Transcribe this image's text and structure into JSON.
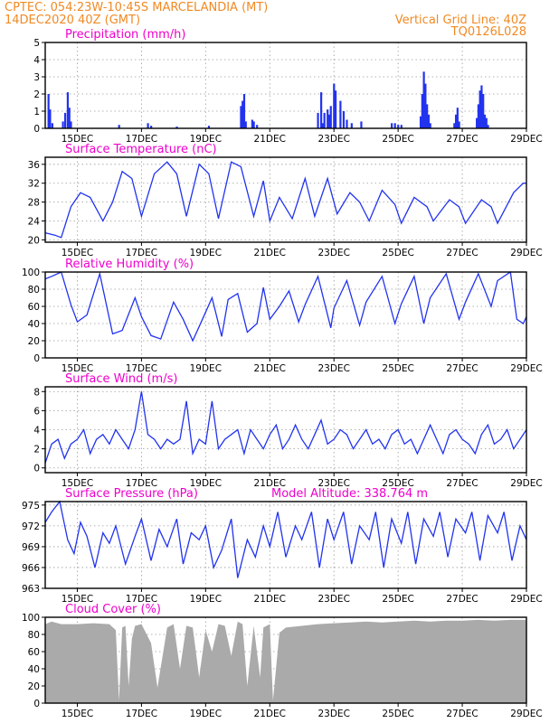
{
  "header": {
    "line1_left": "CPTEC:   054:23W-10:45S   MARCELANDIA (MT)",
    "line2_left": "14DEC2020 40Z (GMT)",
    "line1_right": "Vertical Grid Line: 40Z",
    "line2_right": "TQ0126L028"
  },
  "x_tick_labels": [
    "15DEC",
    "17DEC",
    "19DEC",
    "21DEC",
    "23DEC",
    "25DEC",
    "27DEC",
    "29DEC"
  ],
  "colors": {
    "header": "#f08a24",
    "title": "#ee00cc",
    "series": "#2233ee",
    "cloud": "#aaaaaa"
  },
  "chart_data": [
    {
      "type": "bar",
      "title": "Precipitation (mm/h)",
      "x_days": [
        14.1,
        14.15,
        14.22,
        14.55,
        14.62,
        14.7,
        14.75,
        14.8,
        16.3,
        17.2,
        17.3,
        18.1,
        19.1,
        20.1,
        20.15,
        20.2,
        20.25,
        20.45,
        20.5,
        20.6,
        22.5,
        22.6,
        22.65,
        22.7,
        22.8,
        22.85,
        22.9,
        23.0,
        23.05,
        23.2,
        23.3,
        23.4,
        23.55,
        23.85,
        24.8,
        24.9,
        25.0,
        25.1,
        25.7,
        25.75,
        25.8,
        25.85,
        25.9,
        25.95,
        26.0,
        26.75,
        26.8,
        26.85,
        26.9,
        27.45,
        27.5,
        27.55,
        27.6,
        27.65,
        27.7,
        27.75,
        27.8
      ],
      "values": [
        2.0,
        1.1,
        0.3,
        0.4,
        0.9,
        2.1,
        1.2,
        0.4,
        0.2,
        0.3,
        0.15,
        0.1,
        0.15,
        1.3,
        1.6,
        2.0,
        0.4,
        0.5,
        0.4,
        0.2,
        0.9,
        2.1,
        0.3,
        0.9,
        1.1,
        0.8,
        1.3,
        2.6,
        2.2,
        1.6,
        1.0,
        0.5,
        0.3,
        0.4,
        0.3,
        0.3,
        0.2,
        0.2,
        0.7,
        2.0,
        3.3,
        2.6,
        1.4,
        0.8,
        0.3,
        0.3,
        0.8,
        1.2,
        0.4,
        0.6,
        1.4,
        2.2,
        2.5,
        2.0,
        0.8,
        0.6,
        0.2
      ],
      "xlabel": "",
      "ylabel": "",
      "ylim": [
        0,
        5
      ],
      "yticks": [
        0,
        1,
        2,
        3,
        4,
        5
      ],
      "grid": true
    },
    {
      "type": "line",
      "title": "Surface Temperature (nC)",
      "x_days": [
        14.0,
        14.3,
        14.5,
        14.8,
        15.1,
        15.4,
        15.8,
        16.1,
        16.4,
        16.7,
        17.0,
        17.4,
        17.8,
        18.1,
        18.4,
        18.8,
        19.1,
        19.4,
        19.8,
        20.1,
        20.5,
        20.8,
        21.0,
        21.3,
        21.7,
        22.1,
        22.4,
        22.8,
        23.1,
        23.5,
        23.8,
        24.1,
        24.5,
        24.9,
        25.1,
        25.5,
        25.9,
        26.1,
        26.6,
        26.9,
        27.1,
        27.6,
        27.9,
        28.1,
        28.6,
        28.9,
        29.0
      ],
      "values": [
        21.5,
        21,
        20.5,
        27,
        30,
        29,
        24,
        28,
        34.5,
        33,
        25,
        34,
        36.5,
        34,
        25,
        36,
        34,
        24.5,
        36.5,
        35.5,
        25,
        32.5,
        24,
        29,
        24.5,
        33,
        25,
        33,
        25.5,
        30,
        28,
        24,
        30.5,
        27.5,
        23.5,
        29,
        27,
        24,
        28.5,
        27,
        23.5,
        28.5,
        27,
        23.5,
        30,
        32,
        32
      ],
      "xlabel": "",
      "ylabel": "",
      "ylim": [
        19.5,
        37.5
      ],
      "yticks": [
        20,
        24,
        28,
        32,
        36
      ],
      "grid": true
    },
    {
      "type": "line",
      "title": "Relative Humidity (%)",
      "x_days": [
        14.0,
        14.2,
        14.5,
        14.8,
        15.0,
        15.3,
        15.7,
        16.1,
        16.4,
        16.8,
        17.0,
        17.3,
        17.6,
        18.0,
        18.3,
        18.6,
        18.9,
        19.2,
        19.5,
        19.7,
        20.0,
        20.3,
        20.6,
        20.8,
        21.0,
        21.3,
        21.6,
        21.9,
        22.1,
        22.5,
        22.9,
        23.0,
        23.4,
        23.8,
        24.0,
        24.5,
        24.9,
        25.1,
        25.5,
        25.8,
        26.0,
        26.5,
        26.9,
        27.1,
        27.5,
        27.9,
        28.1,
        28.5,
        28.7,
        28.9,
        29.0
      ],
      "values": [
        92,
        95,
        100,
        62,
        42,
        50,
        98,
        28,
        32,
        70,
        48,
        26,
        22,
        65,
        45,
        20,
        45,
        70,
        25,
        68,
        75,
        30,
        40,
        82,
        45,
        60,
        78,
        42,
        62,
        95,
        35,
        58,
        90,
        38,
        65,
        95,
        40,
        63,
        95,
        40,
        70,
        98,
        45,
        65,
        98,
        60,
        90,
        100,
        45,
        40,
        48
      ],
      "xlabel": "",
      "ylabel": "",
      "ylim": [
        0,
        100
      ],
      "yticks": [
        0,
        20,
        40,
        60,
        80,
        100
      ],
      "grid": true
    },
    {
      "type": "line",
      "title": "Surface Wind (m/s)",
      "x_days": [
        14.0,
        14.2,
        14.4,
        14.6,
        14.8,
        15.0,
        15.2,
        15.4,
        15.6,
        15.8,
        16.0,
        16.2,
        16.4,
        16.6,
        16.8,
        17.0,
        17.2,
        17.4,
        17.6,
        17.8,
        18.0,
        18.2,
        18.4,
        18.6,
        18.8,
        19.0,
        19.2,
        19.4,
        19.6,
        19.8,
        20.0,
        20.2,
        20.4,
        20.6,
        20.8,
        21.0,
        21.2,
        21.4,
        21.6,
        21.8,
        22.0,
        22.2,
        22.4,
        22.6,
        22.8,
        23.0,
        23.2,
        23.4,
        23.6,
        23.8,
        24.0,
        24.2,
        24.4,
        24.6,
        24.8,
        25.0,
        25.2,
        25.4,
        25.6,
        25.8,
        26.0,
        26.2,
        26.4,
        26.6,
        26.8,
        27.0,
        27.2,
        27.4,
        27.6,
        27.8,
        28.0,
        28.2,
        28.4,
        28.6,
        28.8,
        29.0
      ],
      "values": [
        0.5,
        2.5,
        3,
        1,
        2.5,
        3,
        4,
        1.5,
        3,
        3.5,
        2.5,
        4,
        3,
        2,
        4,
        8,
        3.5,
        3,
        2,
        3,
        2.5,
        3,
        7,
        1.5,
        3,
        2.5,
        7,
        2,
        3,
        3.5,
        4,
        1.5,
        4,
        3,
        2,
        3.5,
        4.5,
        2,
        3,
        4.5,
        3,
        2,
        3.5,
        5,
        2.5,
        3,
        4,
        3.5,
        2,
        3,
        4,
        2.5,
        3,
        2,
        3.5,
        4,
        2.5,
        3,
        1.5,
        3,
        4.5,
        3,
        1.5,
        3.5,
        4,
        3,
        2.5,
        1.5,
        3.5,
        4.5,
        2.5,
        3,
        4,
        2,
        3,
        4
      ],
      "xlabel": "",
      "ylabel": "",
      "ylim": [
        -0.5,
        8.5
      ],
      "yticks": [
        0,
        2,
        4,
        6,
        8
      ],
      "grid": true
    },
    {
      "type": "line",
      "title": "Surface Pressure (hPa)",
      "annotation": "Model Altitude: 338.764 m",
      "x_days": [
        14.0,
        14.2,
        14.45,
        14.7,
        14.9,
        15.1,
        15.3,
        15.55,
        15.8,
        16.0,
        16.2,
        16.5,
        16.8,
        17.0,
        17.3,
        17.55,
        17.8,
        18.1,
        18.3,
        18.55,
        18.8,
        19.0,
        19.25,
        19.5,
        19.8,
        20.0,
        20.3,
        20.55,
        20.8,
        21.0,
        21.25,
        21.5,
        21.8,
        22.0,
        22.3,
        22.55,
        22.8,
        23.0,
        23.3,
        23.55,
        23.8,
        24.1,
        24.3,
        24.55,
        24.8,
        25.1,
        25.3,
        25.55,
        25.8,
        26.1,
        26.3,
        26.55,
        26.8,
        27.1,
        27.3,
        27.55,
        27.8,
        28.1,
        28.3,
        28.55,
        28.8,
        29.0
      ],
      "values": [
        972.5,
        974,
        975.5,
        970,
        968,
        972.5,
        970.5,
        966,
        971,
        969.5,
        972,
        966.5,
        970.5,
        973,
        967,
        971.5,
        969,
        973,
        966.5,
        971,
        970,
        972,
        966,
        968.5,
        973,
        964.5,
        970,
        967.5,
        972,
        969,
        974,
        967.5,
        972,
        970,
        974,
        966,
        973,
        970,
        974,
        966.5,
        972,
        970,
        974,
        966,
        973,
        969.5,
        974,
        966.5,
        973,
        970.5,
        974,
        967.5,
        973,
        971,
        974,
        967,
        973.5,
        971,
        974,
        967,
        972,
        970
      ],
      "xlabel": "",
      "ylabel": "",
      "ylim": [
        963,
        975.5
      ],
      "yticks": [
        963,
        966,
        969,
        972,
        975
      ],
      "grid": true
    },
    {
      "type": "area",
      "title": "Cloud Cover (%)",
      "x_days": [
        14.0,
        14.2,
        14.5,
        15.0,
        15.5,
        16.0,
        16.2,
        16.3,
        16.4,
        16.5,
        16.6,
        16.7,
        16.8,
        17.0,
        17.3,
        17.5,
        17.8,
        18.0,
        18.2,
        18.4,
        18.6,
        18.8,
        19.0,
        19.2,
        19.4,
        19.6,
        19.8,
        20.0,
        20.15,
        20.3,
        20.5,
        20.7,
        20.8,
        21.0,
        21.1,
        21.3,
        21.5,
        22.0,
        22.5,
        23.0,
        23.5,
        24.0,
        24.5,
        25.0,
        25.5,
        26.0,
        26.5,
        27.0,
        27.5,
        28.0,
        28.5,
        29.0
      ],
      "values": [
        92,
        95,
        92,
        92,
        93,
        92,
        85,
        3,
        88,
        90,
        20,
        75,
        90,
        92,
        70,
        18,
        88,
        92,
        40,
        90,
        88,
        30,
        85,
        60,
        92,
        90,
        55,
        95,
        92,
        20,
        90,
        30,
        88,
        92,
        3,
        82,
        88,
        90,
        92,
        93,
        94,
        95,
        94,
        95,
        96,
        95,
        96,
        96,
        97,
        96,
        97,
        97
      ],
      "xlabel": "",
      "ylabel": "",
      "ylim": [
        0,
        100
      ],
      "yticks": [
        0,
        20,
        40,
        60,
        80,
        100
      ],
      "grid": true
    }
  ]
}
